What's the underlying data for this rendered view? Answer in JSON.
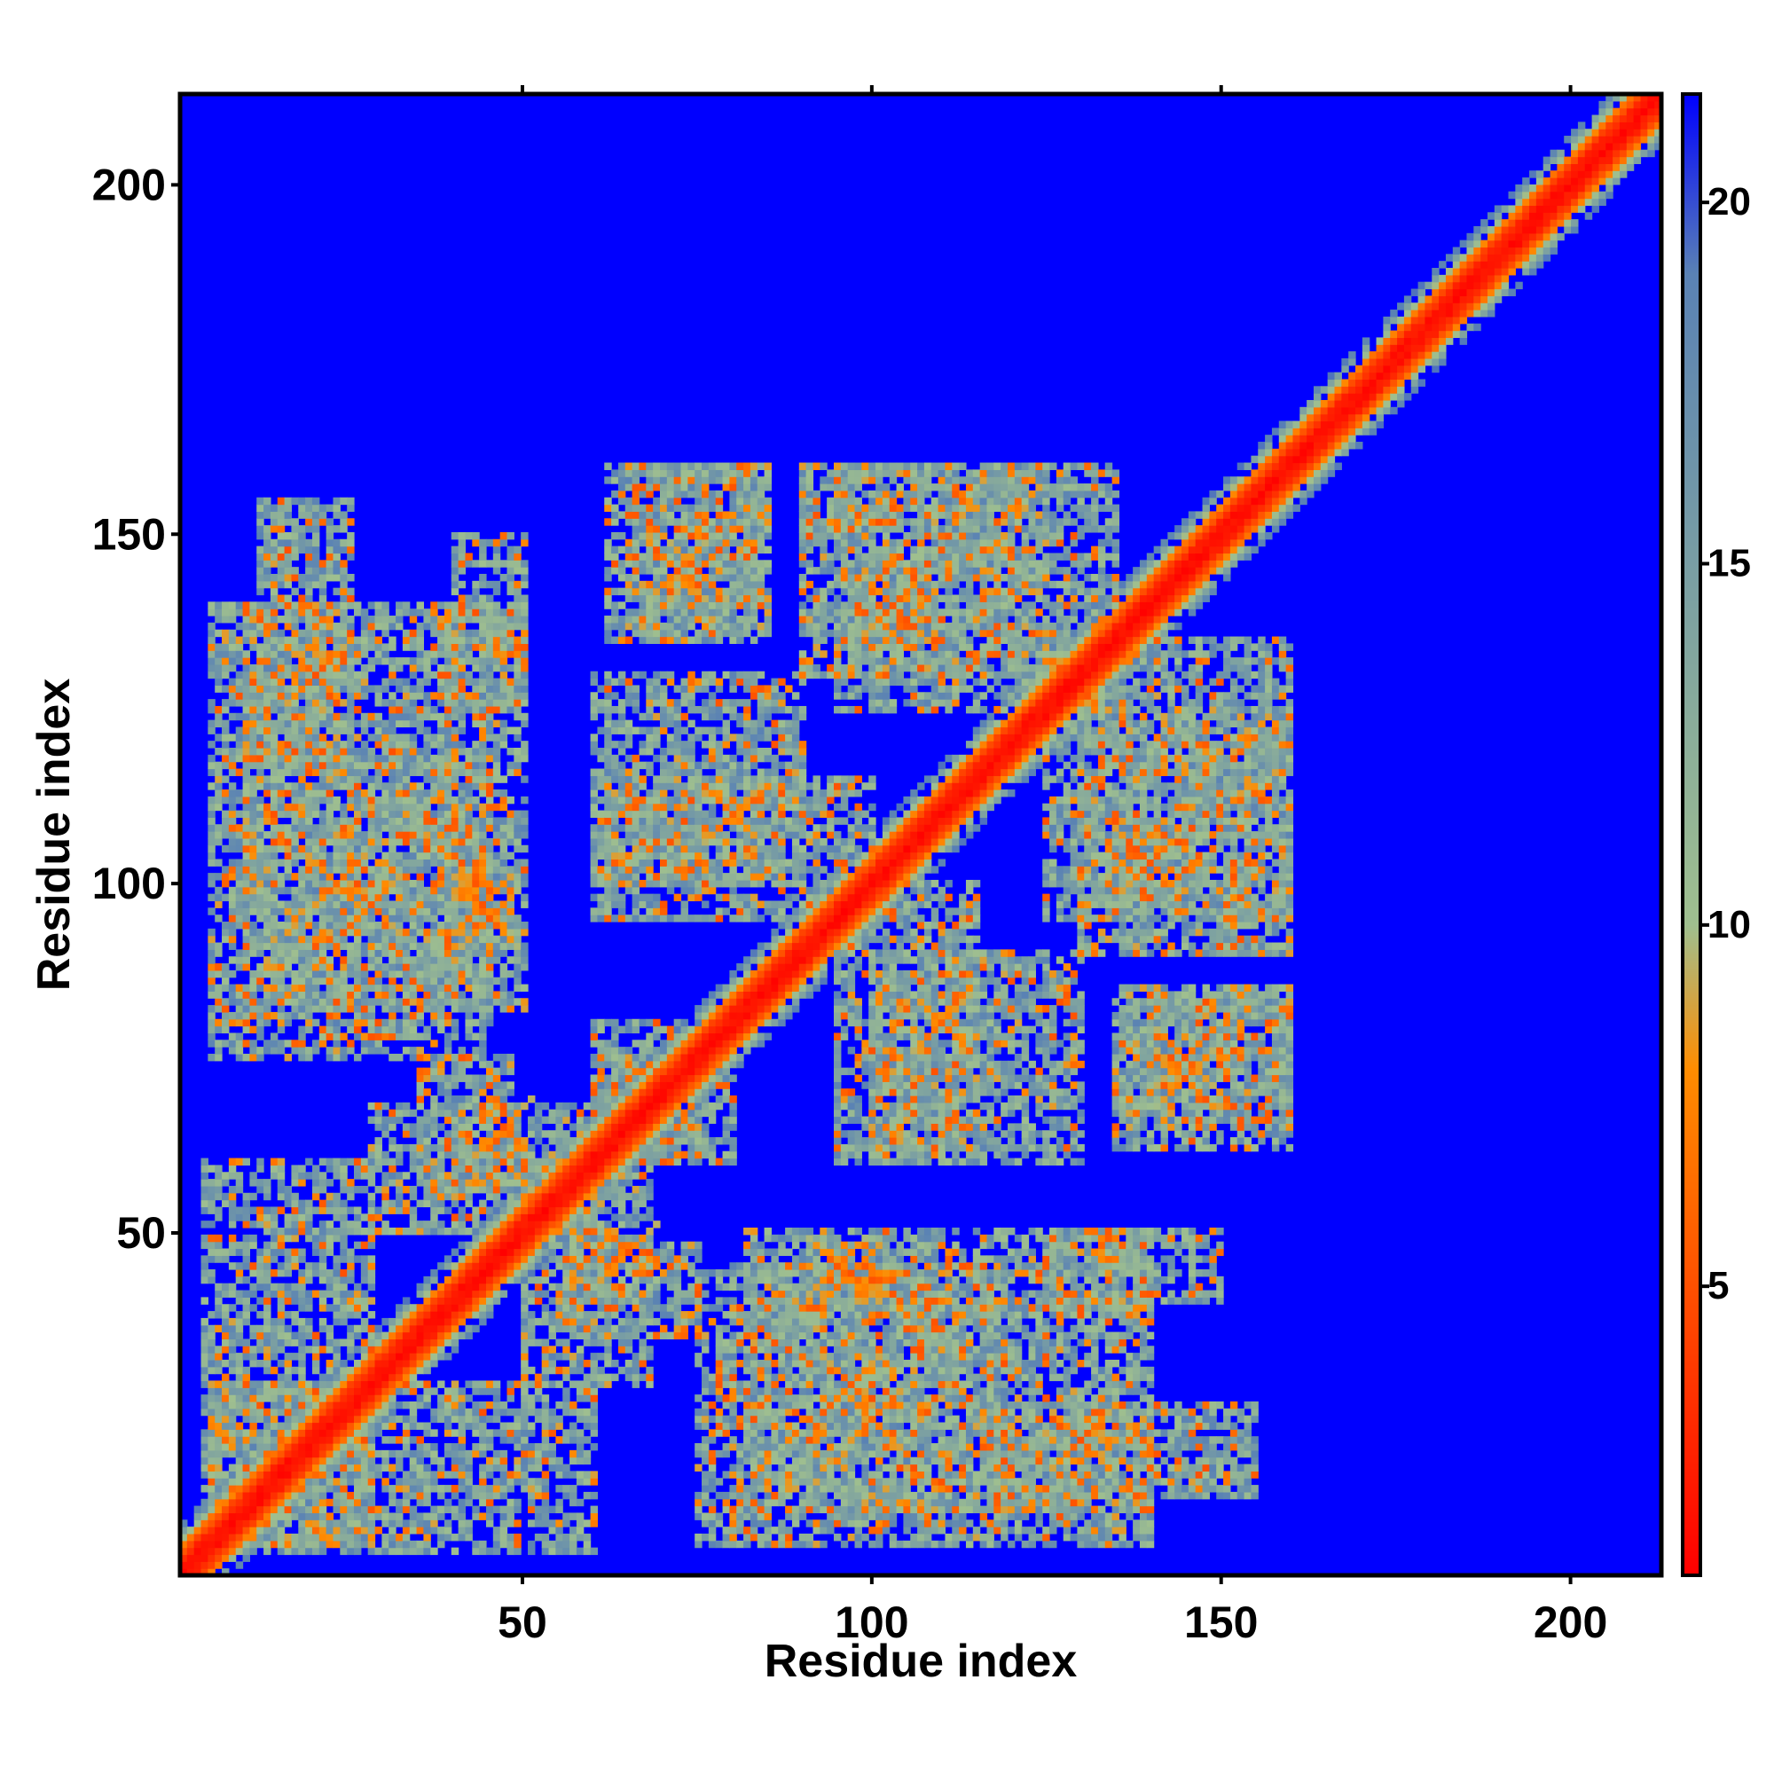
{
  "chart_data": {
    "type": "heatmap",
    "title": "",
    "xlabel": "Residue index",
    "ylabel": "Residue index",
    "xlim": [
      1,
      213
    ],
    "ylim": [
      1,
      213
    ],
    "x_ticks": [
      50,
      100,
      150,
      200
    ],
    "y_ticks": [
      50,
      100,
      150,
      200
    ],
    "colorbar": {
      "range": [
        1,
        21.5
      ],
      "ticks": [
        5,
        10,
        15,
        20
      ],
      "colors": [
        "#ff0000",
        "#ff8c00",
        "#9fbf8f",
        "#5a82b4",
        "#0000ff"
      ],
      "stops": [
        1,
        8,
        10,
        19,
        21.5
      ]
    },
    "background_value": 21.5,
    "diagonal_band": {
      "center_value": 1,
      "halfwidth_residues": 7
    },
    "contact_regions": [
      {
        "x": [
          4,
          28
        ],
        "y": [
          5,
          60
        ]
      },
      {
        "x": [
          10,
          40
        ],
        "y": [
          82,
          140
        ]
      },
      {
        "x": [
          38,
          50
        ],
        "y": [
          82,
          140
        ]
      },
      {
        "x": [
          60,
          90
        ],
        "y": [
          100,
          130
        ]
      },
      {
        "x": [
          62,
          85
        ],
        "y": [
          135,
          160
        ]
      },
      {
        "x": [
          95,
          135
        ],
        "y": [
          125,
          160
        ]
      },
      {
        "x": [
          95,
          115
        ],
        "y": [
          60,
          100
        ]
      },
      {
        "x": [
          130,
          160
        ],
        "y": [
          90,
          125
        ]
      },
      {
        "x": [
          135,
          160
        ],
        "y": [
          65,
          85
        ]
      },
      {
        "x": [
          75,
          118
        ],
        "y": [
          5,
          45
        ]
      },
      {
        "x": [
          118,
          140
        ],
        "y": [
          5,
          25
        ]
      },
      {
        "x": [
          125,
          150
        ],
        "y": [
          40,
          50
        ]
      },
      {
        "x": [
          140,
          155
        ],
        "y": [
          12,
          25
        ]
      },
      {
        "x": [
          50,
          68
        ],
        "y": [
          28,
          60
        ]
      },
      {
        "x": [
          60,
          80
        ],
        "y": [
          60,
          75
        ]
      },
      {
        "x": [
          35,
          48
        ],
        "y": [
          55,
          75
        ]
      }
    ],
    "focal_contacts": [
      {
        "x": 23,
        "y": 100
      },
      {
        "x": 44,
        "y": 97
      },
      {
        "x": 65,
        "y": 47
      },
      {
        "x": 95,
        "y": 45
      },
      {
        "x": 97,
        "y": 28
      },
      {
        "x": 47,
        "y": 60
      },
      {
        "x": 20,
        "y": 130
      },
      {
        "x": 75,
        "y": 145
      },
      {
        "x": 105,
        "y": 138
      },
      {
        "x": 140,
        "y": 103
      },
      {
        "x": 145,
        "y": 72
      },
      {
        "x": 22,
        "y": 24
      },
      {
        "x": 130,
        "y": 20
      },
      {
        "x": 110,
        "y": 80
      }
    ]
  }
}
